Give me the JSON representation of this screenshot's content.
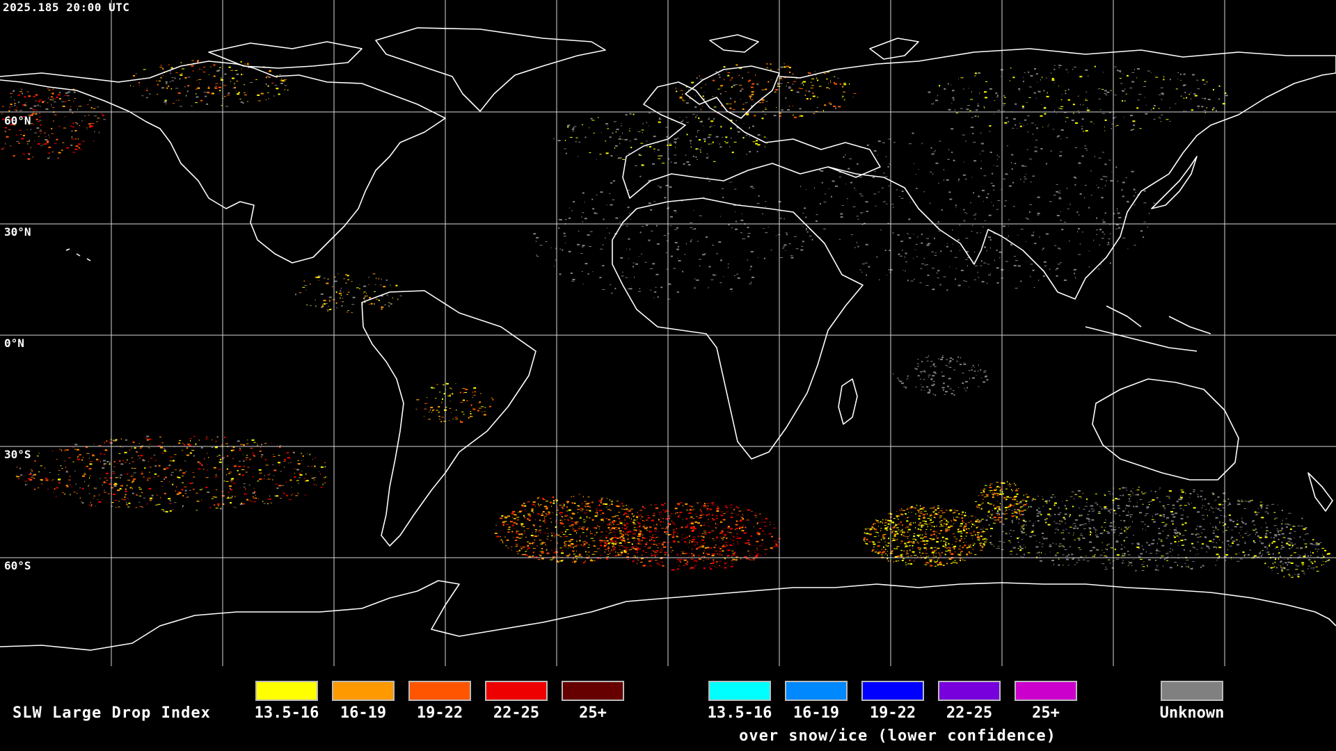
{
  "timestamp": "2025.185 20:00 UTC",
  "lat_labels": [
    "60°N",
    "30°N",
    "0°N",
    "30°S",
    "60°S"
  ],
  "legend": {
    "title": "SLW Large Drop Index",
    "normal": [
      {
        "label": "13.5-16",
        "color": "#ffff00"
      },
      {
        "label": "16-19",
        "color": "#ff9900"
      },
      {
        "label": "19-22",
        "color": "#ff5500"
      },
      {
        "label": "22-25",
        "color": "#ee0000"
      },
      {
        "label": "25+",
        "color": "#660000"
      }
    ],
    "snow_ice": [
      {
        "label": "13.5-16",
        "color": "#00ffff"
      },
      {
        "label": "16-19",
        "color": "#0088ff"
      },
      {
        "label": "19-22",
        "color": "#0000ff"
      },
      {
        "label": "22-25",
        "color": "#7700dd"
      },
      {
        "label": "25+",
        "color": "#cc00cc"
      }
    ],
    "snow_note": "over snow/ice (lower confidence)",
    "unknown": {
      "label": "Unknown",
      "color": "#808080"
    }
  },
  "colors": {
    "background": "#000000",
    "grid": "#ffffff",
    "coastline": "#ffffff"
  }
}
